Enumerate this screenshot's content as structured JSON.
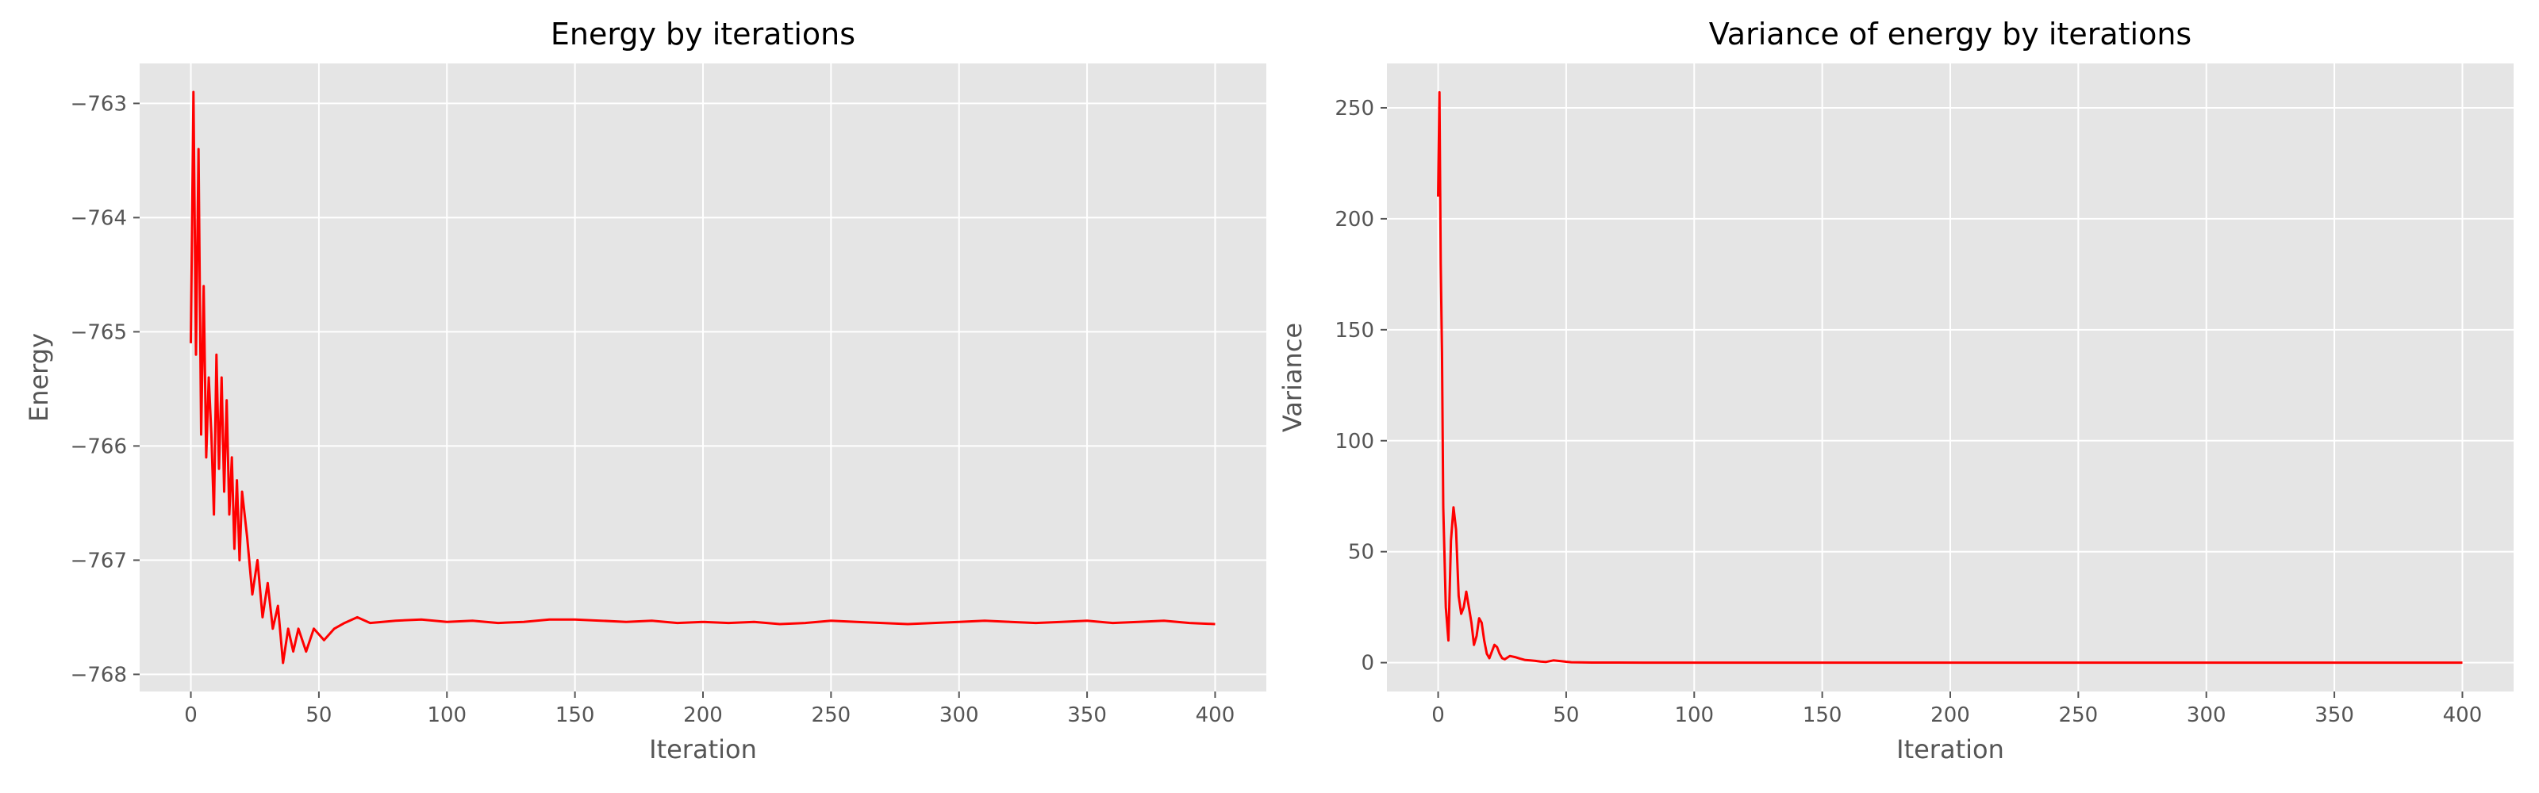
{
  "chart_data": [
    {
      "type": "line",
      "title": "Energy by iterations",
      "xlabel": "Iteration",
      "ylabel": "Energy",
      "xlim": [
        -20,
        420
      ],
      "ylim": [
        -768.15,
        -762.65
      ],
      "xticks": [
        0,
        50,
        100,
        150,
        200,
        250,
        300,
        350,
        400
      ],
      "yticks": [
        -768,
        -767,
        -766,
        -765,
        -764,
        -763
      ],
      "xtick_labels": [
        "0",
        "50",
        "100",
        "150",
        "200",
        "250",
        "300",
        "350",
        "400"
      ],
      "ytick_labels": [
        "−768",
        "−767",
        "−766",
        "−765",
        "−764",
        "−763"
      ],
      "grid": true,
      "series": [
        {
          "color": "#ff0000",
          "x": [
            0,
            1,
            2,
            3,
            4,
            5,
            6,
            7,
            8,
            9,
            10,
            11,
            12,
            13,
            14,
            15,
            16,
            17,
            18,
            19,
            20,
            22,
            24,
            26,
            28,
            30,
            32,
            34,
            36,
            38,
            40,
            42,
            45,
            48,
            52,
            56,
            60,
            65,
            70,
            80,
            90,
            100,
            110,
            120,
            130,
            140,
            150,
            160,
            170,
            180,
            190,
            200,
            210,
            220,
            230,
            240,
            250,
            260,
            270,
            280,
            290,
            300,
            310,
            320,
            330,
            340,
            350,
            360,
            370,
            380,
            390,
            400
          ],
          "y": [
            -765.1,
            -762.9,
            -765.2,
            -763.4,
            -765.9,
            -764.6,
            -766.1,
            -765.4,
            -765.9,
            -766.6,
            -765.2,
            -766.2,
            -765.4,
            -766.4,
            -765.6,
            -766.6,
            -766.1,
            -766.9,
            -766.3,
            -767.0,
            -766.4,
            -766.8,
            -767.3,
            -767.0,
            -767.5,
            -767.2,
            -767.6,
            -767.4,
            -767.9,
            -767.6,
            -767.8,
            -767.6,
            -767.8,
            -767.6,
            -767.7,
            -767.6,
            -767.55,
            -767.5,
            -767.55,
            -767.53,
            -767.52,
            -767.54,
            -767.53,
            -767.55,
            -767.54,
            -767.52,
            -767.52,
            -767.53,
            -767.54,
            -767.53,
            -767.55,
            -767.54,
            -767.55,
            -767.54,
            -767.56,
            -767.55,
            -767.53,
            -767.54,
            -767.55,
            -767.56,
            -767.55,
            -767.54,
            -767.53,
            -767.54,
            -767.55,
            -767.54,
            -767.53,
            -767.55,
            -767.54,
            -767.53,
            -767.55,
            -767.56
          ]
        }
      ]
    },
    {
      "type": "line",
      "title": "Variance of energy by iterations",
      "xlabel": "Iteration",
      "ylabel": "Variance",
      "xlim": [
        -20,
        420
      ],
      "ylim": [
        -13,
        270
      ],
      "xticks": [
        0,
        50,
        100,
        150,
        200,
        250,
        300,
        350,
        400
      ],
      "yticks": [
        0,
        50,
        100,
        150,
        200,
        250
      ],
      "xtick_labels": [
        "0",
        "50",
        "100",
        "150",
        "200",
        "250",
        "300",
        "350",
        "400"
      ],
      "ytick_labels": [
        "0",
        "50",
        "100",
        "150",
        "200",
        "250"
      ],
      "grid": true,
      "series": [
        {
          "color": "#ff0000",
          "x": [
            0,
            0.5,
            1,
            1.5,
            2,
            3,
            4,
            5,
            6,
            7,
            8,
            9,
            10,
            11,
            12,
            13,
            14,
            15,
            16,
            17,
            18,
            19,
            20,
            21,
            22,
            23,
            24,
            25,
            26,
            28,
            30,
            32,
            34,
            36,
            38,
            40,
            42,
            45,
            48,
            50,
            52,
            55,
            60,
            70,
            80,
            100,
            150,
            200,
            250,
            300,
            350,
            400
          ],
          "y": [
            210,
            257,
            180,
            140,
            70,
            25,
            10,
            55,
            70,
            60,
            30,
            22,
            25,
            32,
            25,
            18,
            8,
            12,
            20,
            18,
            10,
            4,
            2,
            5,
            8,
            7,
            4,
            2,
            1.5,
            3,
            2.5,
            1.8,
            1.2,
            1,
            0.8,
            0.5,
            0.3,
            1,
            0.7,
            0.4,
            0.2,
            0.1,
            0.05,
            0.03,
            0.02,
            0.01,
            0.01,
            0.01,
            0.01,
            0.01,
            0.01,
            0.01
          ]
        }
      ]
    }
  ]
}
